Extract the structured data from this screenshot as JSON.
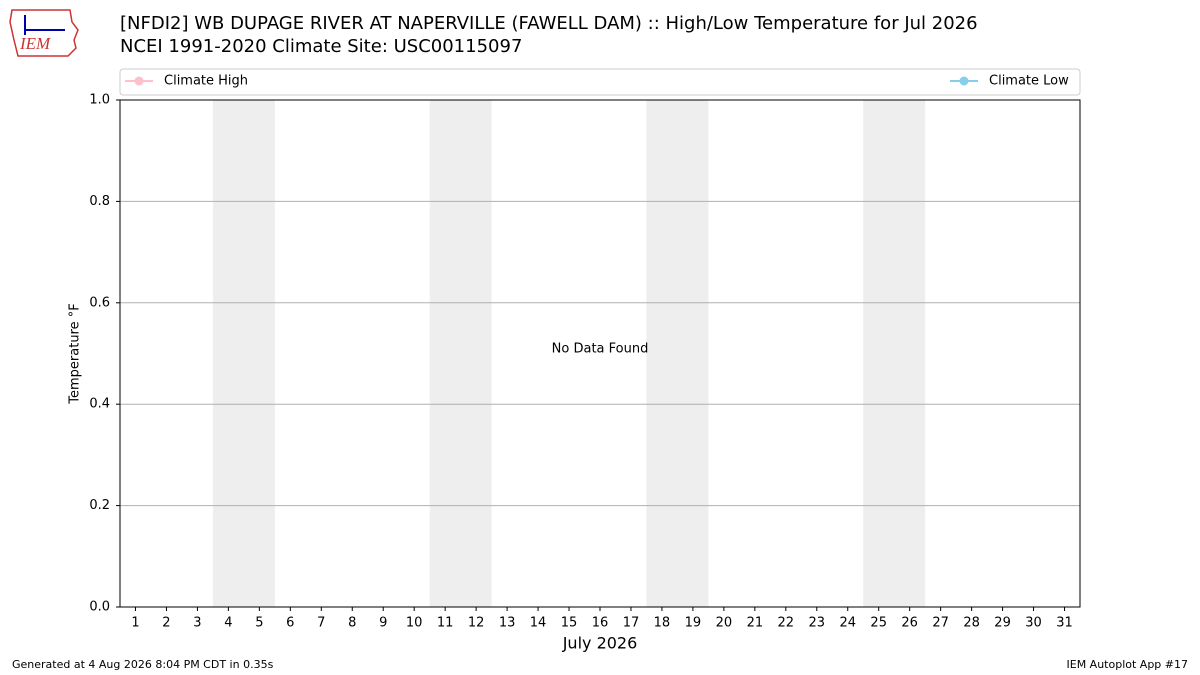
{
  "chart_data": {
    "type": "line",
    "title": "[NFDI2] WB DUPAGE RIVER AT NAPERVILLE (FAWELL DAM) :: High/Low Temperature for Jul 2026",
    "subtitle": "NCEI 1991-2020 Climate Site: USC00115097",
    "xlabel": "July 2026",
    "ylabel": "Temperature °F",
    "annotation": "No Data Found",
    "xlim": [
      0.5,
      31.5
    ],
    "xticks": [
      1,
      2,
      3,
      4,
      5,
      6,
      7,
      8,
      9,
      10,
      11,
      12,
      13,
      14,
      15,
      16,
      17,
      18,
      19,
      20,
      21,
      22,
      23,
      24,
      25,
      26,
      27,
      28,
      29,
      30,
      31
    ],
    "ylim": [
      0,
      1
    ],
    "yticks": [
      {
        "value": 0,
        "label": "0.0"
      },
      0.2,
      0.4,
      0.6,
      0.8,
      {
        "value": 1,
        "label": "1.0"
      }
    ],
    "grid": true,
    "legend": "upper",
    "shaded_spans": [
      [
        3.5,
        5.5
      ],
      [
        10.5,
        12.5
      ],
      [
        17.5,
        19.5
      ],
      [
        24.5,
        26.5
      ]
    ],
    "shade_color": "#eeeeee",
    "series": [
      {
        "name": "Climate High",
        "color": "#ffc0cb",
        "values": []
      },
      {
        "name": "Climate Low",
        "color": "#87ceeb",
        "values": []
      }
    ]
  },
  "logo_text": "IEM",
  "footer": {
    "left": "Generated at 4 Aug 2026 8:04 PM CDT in 0.35s",
    "right": "IEM Autoplot App #17"
  }
}
